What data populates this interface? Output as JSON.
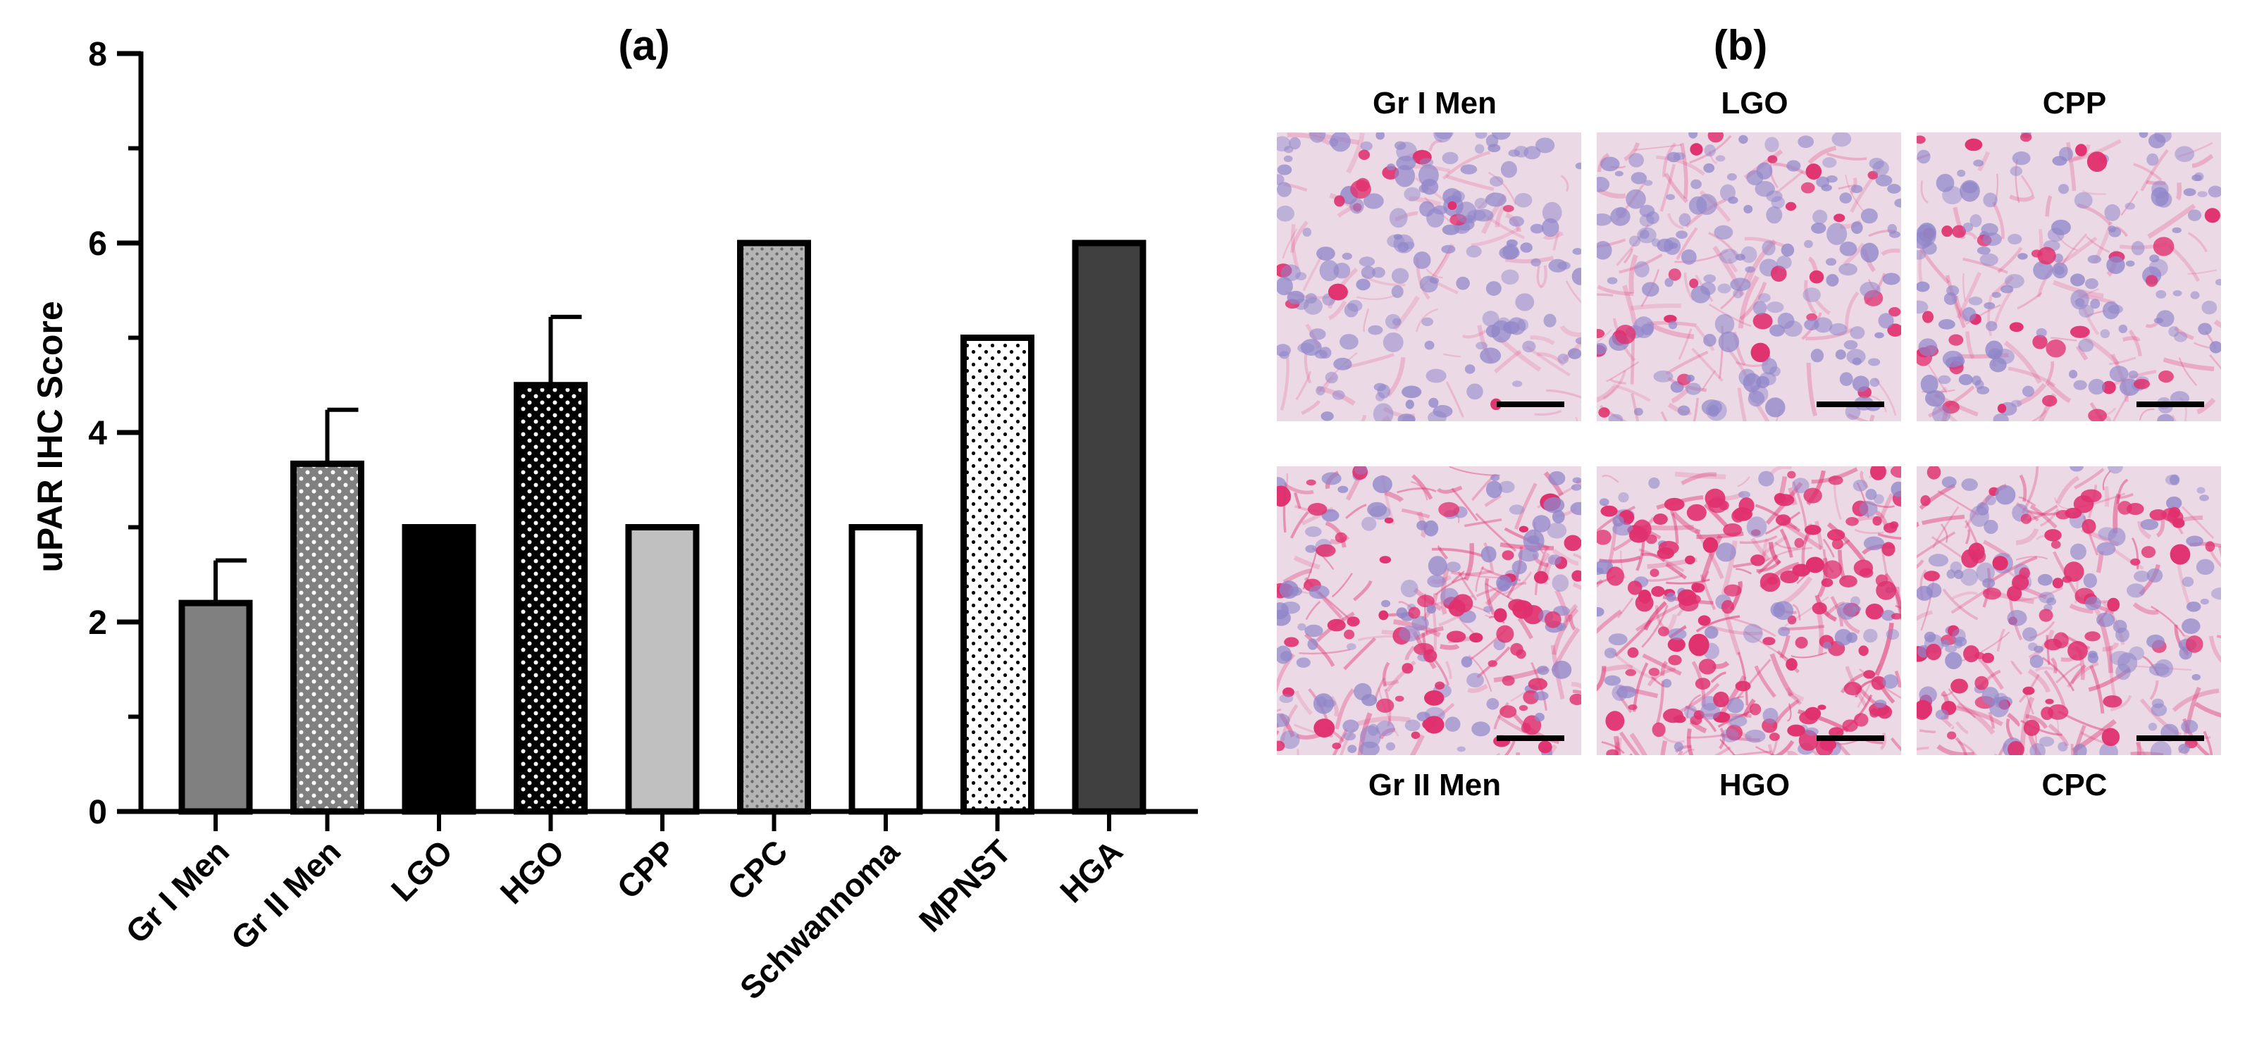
{
  "panel_a_label": "(a)",
  "panel_b_label": "(b)",
  "chart_data": {
    "type": "bar",
    "title": "",
    "xlabel": "",
    "ylabel": "uPAR IHC Score",
    "ylim": [
      0,
      8
    ],
    "yticks": [
      0,
      2,
      4,
      6,
      8
    ],
    "grid": false,
    "categories": [
      "Gr I Men",
      "Gr II Men",
      "LGO",
      "HGO",
      "CPP",
      "CPC",
      "Schwannoma",
      "MPNST",
      "HGA"
    ],
    "values": [
      2.2,
      3.67,
      3.0,
      4.5,
      3.0,
      6.0,
      3.0,
      5.0,
      6.0
    ],
    "error_upper": [
      0.45,
      0.57,
      0,
      0.72,
      0,
      0,
      0,
      0,
      0
    ],
    "bar_fills": [
      "#808080",
      "dots-white-on-gray",
      "#000000",
      "dots-white-on-black",
      "#c0c0c0",
      "dots-gray-on-lightgray",
      "#ffffff",
      "dots-black-on-white",
      "#404040"
    ]
  },
  "micrographs": {
    "top_row": [
      {
        "label": "Gr I Men",
        "stain": "light"
      },
      {
        "label": "LGO",
        "stain": "moderate"
      },
      {
        "label": "CPP",
        "stain": "moderate"
      }
    ],
    "bottom_row": [
      {
        "label": "Gr II Men",
        "stain": "strong"
      },
      {
        "label": "HGO",
        "stain": "very-strong"
      },
      {
        "label": "CPC",
        "stain": "strong"
      }
    ],
    "colors": {
      "hematoxylin": "#8f86c9",
      "stain": "#e0306e",
      "background": "#ecd9e6"
    }
  }
}
